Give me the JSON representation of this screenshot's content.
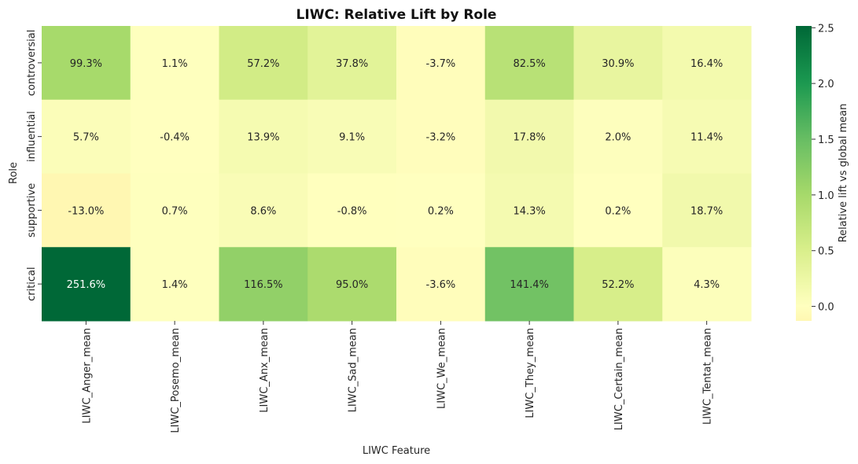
{
  "chart_data": {
    "type": "heatmap",
    "title": "LIWC: Relative Lift by Role",
    "x_label": "LIWC Feature",
    "y_label": "Role",
    "colorbar_label": "Relative lift vs global mean",
    "categories": [
      "LIWC_Anger_mean",
      "LIWC_Posemo_mean",
      "LIWC_Anx_mean",
      "LIWC_Sad_mean",
      "LIWC_We_mean",
      "LIWC_They_mean",
      "LIWC_Certain_mean",
      "LIWC_Tentat_mean"
    ],
    "y_categories": [
      "controversial",
      "influential",
      "supportive",
      "critical"
    ],
    "values": [
      [
        0.993,
        0.011,
        0.572,
        0.378,
        -0.037,
        0.825,
        0.309,
        0.164
      ],
      [
        0.057,
        -0.004,
        0.139,
        0.091,
        -0.032,
        0.178,
        0.02,
        0.114
      ],
      [
        -0.13,
        0.007,
        0.086,
        -0.008,
        0.002,
        0.143,
        0.002,
        0.187
      ],
      [
        2.516,
        0.014,
        1.165,
        0.95,
        -0.036,
        1.414,
        0.522,
        0.043
      ]
    ],
    "value_labels": [
      [
        "99.3%",
        "1.1%",
        "57.2%",
        "37.8%",
        "-3.7%",
        "82.5%",
        "30.9%",
        "16.4%"
      ],
      [
        "5.7%",
        "-0.4%",
        "13.9%",
        "9.1%",
        "-3.2%",
        "17.8%",
        "2.0%",
        "11.4%"
      ],
      [
        "-13.0%",
        "0.7%",
        "8.6%",
        "-0.8%",
        "0.2%",
        "14.3%",
        "0.2%",
        "18.7%"
      ],
      [
        "251.6%",
        "1.4%",
        "116.5%",
        "95.0%",
        "-3.6%",
        "141.4%",
        "52.2%",
        "4.3%"
      ]
    ],
    "colormap": "RdYlGn",
    "center": 0,
    "clim": [
      -0.13,
      2.516
    ],
    "cticks": [
      {
        "value": 0,
        "label": "0.0"
      },
      {
        "value": 0.5,
        "label": "0.5"
      },
      {
        "value": 1,
        "label": "1.0"
      },
      {
        "value": 1.5,
        "label": "1.5"
      },
      {
        "value": 2,
        "label": "2.0"
      },
      {
        "value": 2.5,
        "label": "2.5"
      }
    ]
  }
}
